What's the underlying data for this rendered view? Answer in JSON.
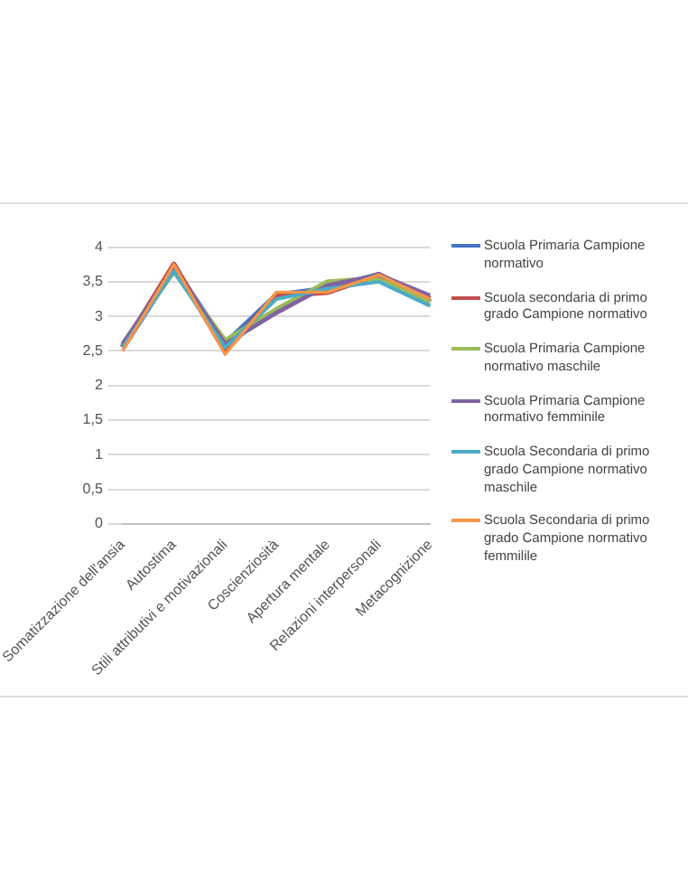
{
  "chart_data": {
    "type": "line",
    "categories": [
      "Somatizzazione dell'ansia",
      "Autostima",
      "Stili attributivi e motivazionali",
      "Coscienziosità",
      "Apertura mentale",
      "Relazioni interpersonali",
      "Metacognizione"
    ],
    "ylim": [
      0,
      4
    ],
    "yticks": [
      0,
      {
        "value": 0.5,
        "label": "0,5"
      },
      1,
      {
        "value": 1.5,
        "label": "1,5"
      },
      2,
      {
        "value": 2.5,
        "label": "2,5"
      },
      3,
      {
        "value": 3.5,
        "label": "3,5"
      },
      4
    ],
    "grid": "y",
    "legend": "right",
    "marker": "none",
    "series": [
      {
        "name": "Scuola Primaria Campione normativo",
        "color": "#4472c4",
        "values": [
          2.55,
          3.7,
          2.6,
          3.3,
          3.4,
          3.6,
          3.2
        ]
      },
      {
        "name": "Scuola secondaria di primo grado Campione normativo",
        "color": "#c0504d",
        "values": [
          2.55,
          3.75,
          2.5,
          3.3,
          3.35,
          3.6,
          3.25
        ]
      },
      {
        "name": "Scuola Primaria Campione normativo maschile",
        "color": "#9bbb59",
        "values": [
          2.6,
          3.65,
          2.65,
          3.1,
          3.5,
          3.55,
          3.2
        ]
      },
      {
        "name": "Scuola Primaria Campione normativo femminile",
        "color": "#8064a2",
        "values": [
          2.6,
          3.7,
          2.6,
          3.05,
          3.45,
          3.6,
          3.3
        ]
      },
      {
        "name": "Scuola Secondaria di primo grado Campione normativo maschile",
        "color": "#4bacc6",
        "values": [
          2.55,
          3.65,
          2.55,
          3.25,
          3.4,
          3.5,
          3.15
        ]
      },
      {
        "name": "Scuola Secondaria di primo grado Campione normativo femmilile",
        "color": "#f79646",
        "values": [
          2.5,
          3.75,
          2.45,
          3.35,
          3.35,
          3.6,
          3.25
        ]
      }
    ]
  }
}
